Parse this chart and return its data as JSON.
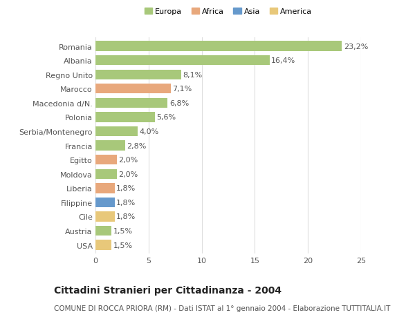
{
  "categories": [
    "Romania",
    "Albania",
    "Regno Unito",
    "Marocco",
    "Macedonia d/N.",
    "Polonia",
    "Serbia/Montenegro",
    "Francia",
    "Egitto",
    "Moldova",
    "Liberia",
    "Filippine",
    "Cile",
    "Austria",
    "USA"
  ],
  "values": [
    23.2,
    16.4,
    8.1,
    7.1,
    6.8,
    5.6,
    4.0,
    2.8,
    2.0,
    2.0,
    1.8,
    1.8,
    1.8,
    1.5,
    1.5
  ],
  "continents": [
    "Europa",
    "Europa",
    "Europa",
    "Africa",
    "Europa",
    "Europa",
    "Europa",
    "Europa",
    "Africa",
    "Europa",
    "Africa",
    "Asia",
    "America",
    "Europa",
    "America"
  ],
  "colors": {
    "Europa": "#a8c87a",
    "Africa": "#e8a87c",
    "Asia": "#6699cc",
    "America": "#e8c87a"
  },
  "legend_order": [
    "Europa",
    "Africa",
    "Asia",
    "America"
  ],
  "title": "Cittadini Stranieri per Cittadinanza - 2004",
  "subtitle": "COMUNE DI ROCCA PRIORA (RM) - Dati ISTAT al 1° gennaio 2004 - Elaborazione TUTTITALIA.IT",
  "xlim": [
    0,
    25
  ],
  "xticks": [
    0,
    5,
    10,
    15,
    20,
    25
  ],
  "background_color": "#ffffff",
  "grid_color": "#dddddd",
  "bar_height": 0.7,
  "label_fontsize": 8,
  "title_fontsize": 10,
  "subtitle_fontsize": 7.5
}
